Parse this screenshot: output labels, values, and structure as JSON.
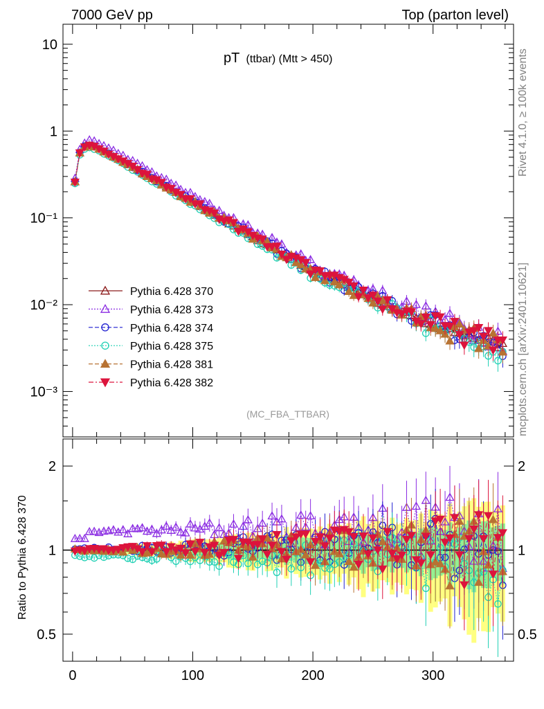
{
  "header": {
    "left": "7000 GeV pp",
    "right": "Top (parton level)"
  },
  "side_labels": {
    "rivet": "Rivet 4.1.0, ≥ 100k events",
    "site": "mcplots.cern.ch [arXiv:2401.10621]"
  },
  "chart_data": [
    {
      "type": "scatter",
      "panel": "main",
      "title_main": "pT",
      "title_sub": "(ttbar) (Mtt > 450)",
      "analysis_label": "(MC_FBA_TTBAR)",
      "yscale": "log",
      "xlim": [
        -8,
        367
      ],
      "ylim": [
        0.0003,
        17
      ],
      "xlabel": "",
      "ylabel": "",
      "y_ticks": [
        {
          "value": 10,
          "label": "10"
        },
        {
          "value": 1,
          "label": "1"
        },
        {
          "value": 0.1,
          "label": "10⁻¹"
        },
        {
          "value": 0.01,
          "label": "10⁻²"
        },
        {
          "value": 0.001,
          "label": "10⁻³"
        }
      ],
      "x_ticks": [
        0,
        100,
        200,
        300
      ],
      "shape": {
        "x_step": 4,
        "x_first": 2,
        "n_points": 90,
        "points_at": [
          2,
          6,
          10,
          14,
          18,
          22,
          40,
          80,
          120,
          160,
          200,
          240,
          280,
          320,
          358
        ],
        "reference_values": [
          0.26,
          0.56,
          0.66,
          0.68,
          0.66,
          0.62,
          0.46,
          0.22,
          0.105,
          0.05,
          0.024,
          0.0135,
          0.0075,
          0.0048,
          0.0034
        ]
      },
      "series": [
        {
          "name": "Pythia 6.428 370",
          "marker": "triangle-open",
          "line": "solid",
          "color": "#8b1a1a",
          "scale": 1.0
        },
        {
          "name": "Pythia 6.428 373",
          "marker": "triangle-open",
          "line": "dotted",
          "color": "#8a2be2",
          "scale": 1.12
        },
        {
          "name": "Pythia 6.428 374",
          "marker": "circle-open",
          "line": "dashed",
          "color": "#1f1fd0",
          "scale": 1.02
        },
        {
          "name": "Pythia 6.428 375",
          "marker": "circle-open",
          "line": "dotted",
          "color": "#1fd0b4",
          "scale": 0.96
        },
        {
          "name": "Pythia 6.428 381",
          "marker": "triangle-filled",
          "line": "dashed",
          "color": "#b87333",
          "scale": 1.0
        },
        {
          "name": "Pythia 6.428 382",
          "marker": "triangle-down-filled",
          "line": "dashdot",
          "color": "#dc143c",
          "scale": 1.01
        }
      ]
    },
    {
      "type": "scatter",
      "panel": "ratio",
      "ylabel": "Ratio to Pythia 6.428 370",
      "yscale": "log",
      "xlim": [
        -8,
        367
      ],
      "ylim": [
        0.4,
        2.5
      ],
      "y_ticks": [
        {
          "value": 2,
          "label": "2"
        },
        {
          "value": 1,
          "label": "1"
        },
        {
          "value": 0.5,
          "label": "0.5"
        }
      ],
      "x_ticks": [
        {
          "value": 0,
          "label": "0"
        },
        {
          "value": 100,
          "label": "100"
        },
        {
          "value": 200,
          "label": "200"
        },
        {
          "value": 300,
          "label": "300"
        }
      ],
      "band_inner_color": "#90ee90",
      "band_outer_color": "#ffff80",
      "series_ratio_levels": [
        {
          "name": "Pythia 6.428 370",
          "low_x": 1.0,
          "high_x": 1.0
        },
        {
          "name": "Pythia 6.428 373",
          "low_x": 1.16,
          "high_x": 1.25
        },
        {
          "name": "Pythia 6.428 374",
          "low_x": 1.01,
          "high_x": 1.05
        },
        {
          "name": "Pythia 6.428 375",
          "low_x": 0.95,
          "high_x": 0.92
        },
        {
          "name": "Pythia 6.428 381",
          "low_x": 1.0,
          "high_x": 1.02
        },
        {
          "name": "Pythia 6.428 382",
          "low_x": 1.0,
          "high_x": 1.05
        }
      ]
    }
  ]
}
